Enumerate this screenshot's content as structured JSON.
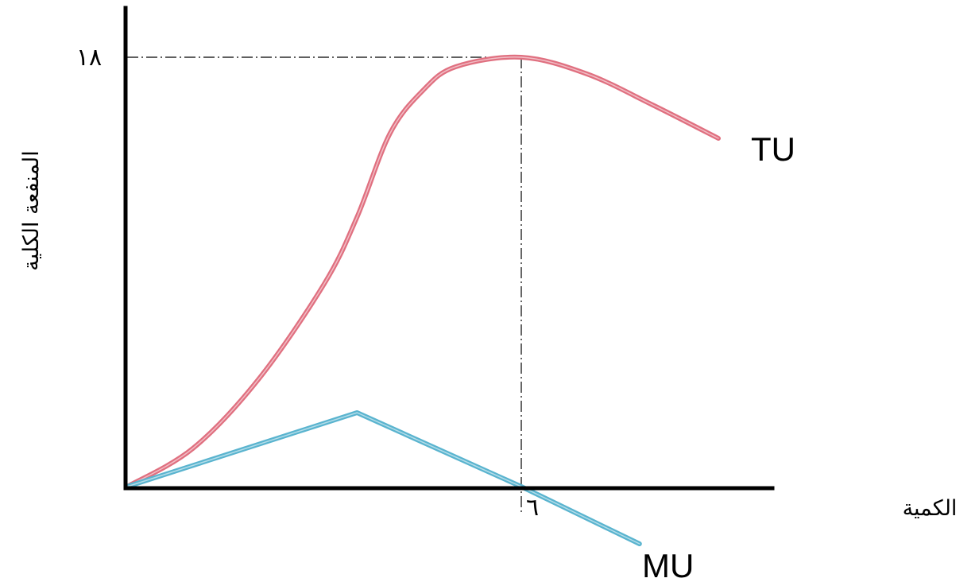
{
  "chart_data": {
    "type": "line",
    "xlabel": "الكمية",
    "ylabel": "المنفعة الكلية",
    "x_tick_labels": [
      {
        "value": 6,
        "label": "٦"
      }
    ],
    "y_tick_labels": [
      {
        "value": 18,
        "label": "١٨"
      }
    ],
    "xlim": [
      0,
      10
    ],
    "ylim": [
      0,
      18
    ],
    "grid": false,
    "reference_point": {
      "x": 6,
      "y": 18
    },
    "series": [
      {
        "name": "TU",
        "color": "#e07080",
        "points": [
          [
            0,
            0
          ],
          [
            1,
            1.6
          ],
          [
            2,
            4.5
          ],
          [
            3,
            8.5
          ],
          [
            3.5,
            11.3
          ],
          [
            4,
            14.8
          ],
          [
            4.5,
            16.6
          ],
          [
            5,
            17.6
          ],
          [
            6,
            18
          ],
          [
            7,
            17.3
          ],
          [
            8,
            16.0
          ],
          [
            9,
            14.6
          ]
        ]
      },
      {
        "name": "MU",
        "color": "#5ab4cf",
        "points": [
          [
            0,
            0
          ],
          [
            3.5,
            3.1
          ],
          [
            6,
            0
          ],
          [
            7.8,
            -2.4
          ]
        ]
      }
    ]
  }
}
